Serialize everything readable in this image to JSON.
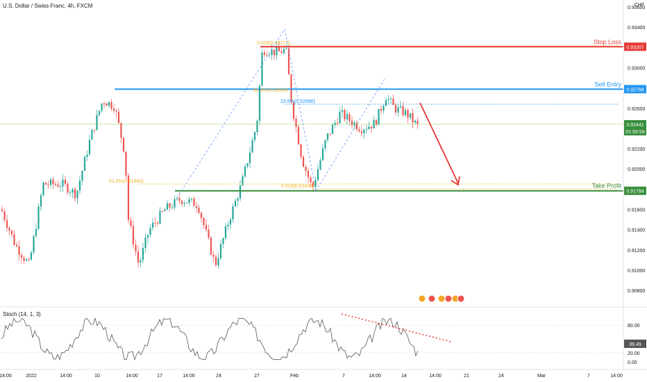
{
  "header": {
    "title": "U.S. Dollar / Swiss Franc, 4h, FXCM",
    "currency": "CHF"
  },
  "colors": {
    "up": "#26a69a",
    "down": "#ef5350",
    "stop": "#e53935",
    "entry": "#2196f3",
    "tp": "#388e3c",
    "fib": "#f0b429",
    "stoch": "#555555"
  },
  "chart_data": {
    "type": "candlestick",
    "y_ticks": [
      "0.93600",
      "0.93400",
      "0.93000",
      "0.92600",
      "0.92200",
      "0.92000",
      "0.91600",
      "0.91400",
      "0.91200",
      "0.91000",
      "0.90800"
    ],
    "x_ticks": [
      "14:00",
      "2022",
      "14:00",
      "10",
      "14:00",
      "17",
      "14:00",
      "24",
      "27",
      "Feb",
      "7",
      "14:00",
      "14",
      "14:00",
      "21",
      "24",
      "Mar",
      "7",
      "14:00"
    ],
    "levels": [
      {
        "name": "Stop Loss",
        "value": 0.93207,
        "label": "0.93207"
      },
      {
        "name": "Sell Entry",
        "value": 0.92788,
        "label": "0.92788"
      },
      {
        "name": "Take Profit",
        "value": 0.91784,
        "label": "0.91784"
      }
    ],
    "current_price": {
      "value": 0.92441,
      "label": "0.92441",
      "countdown": "01:55:59"
    },
    "fib_labels": [
      "0.618(0.93277)",
      "61.8%(0.92800)",
      "23.6%(0.92686)",
      "61.8%(0.91863)",
      "0.618(0.91833)"
    ],
    "stochastic": {
      "title": "Stoch (14, 1, 3)",
      "y_ticks": [
        "80.00",
        "20.00",
        "0.00"
      ],
      "current": "39.49"
    }
  }
}
